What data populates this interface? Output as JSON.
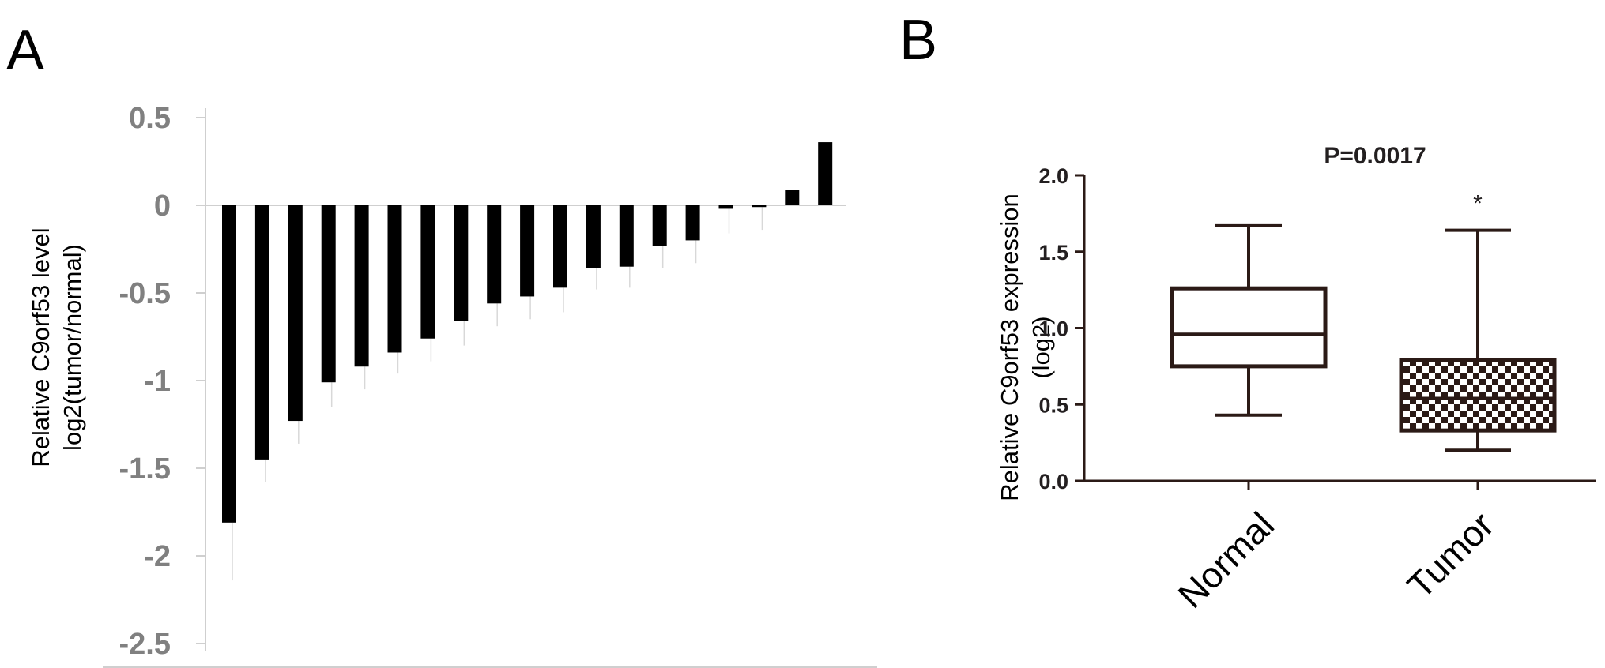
{
  "panel_a": {
    "letter": "A"
  },
  "panel_b": {
    "letter": "B"
  },
  "colors": {
    "bar": "#000000",
    "axis": "#cfcfcf",
    "tick_label_a": "#808080",
    "box_stroke": "#2b1a16",
    "text": "#231f20"
  },
  "chart_data": [
    {
      "type": "bar",
      "panel": "A",
      "title": "",
      "ylabel_lines": [
        "Relative C9orf53 level",
        "log2(tumor/normal)"
      ],
      "xlabel": "",
      "ylim": [
        -2.5,
        0.5
      ],
      "yticks": [
        0.5,
        0,
        -0.5,
        -1,
        -1.5,
        -2,
        -2.5
      ],
      "ytick_labels": [
        "0.5",
        "0",
        "-0.5",
        "-1",
        "-1.5",
        "-2",
        "-2.5"
      ],
      "values": [
        -1.81,
        -1.45,
        -1.23,
        -1.01,
        -0.92,
        -0.84,
        -0.76,
        -0.66,
        -0.56,
        -0.52,
        -0.47,
        -0.36,
        -0.35,
        -0.23,
        -0.2,
        -0.02,
        -0.01,
        0.09,
        0.36
      ],
      "error_bars": [
        0.33,
        0.13,
        0.13,
        0.14,
        0.13,
        0.12,
        0.13,
        0.14,
        0.13,
        0.13,
        0.14,
        0.12,
        0.12,
        0.13,
        0.13,
        0.14,
        0.13,
        0,
        0
      ],
      "grid": false
    },
    {
      "type": "box",
      "panel": "B",
      "title": "",
      "annotation": "P=0.0017",
      "significance_marker": "*",
      "ylabel_lines": [
        "Relative C9orf53 expression",
        "(log2)"
      ],
      "xlabel": "",
      "ylim": [
        0.0,
        2.0
      ],
      "yticks": [
        0.0,
        0.5,
        1.0,
        1.5,
        2.0
      ],
      "ytick_labels": [
        "0.0",
        "0.5",
        "1.0",
        "1.5",
        "2.0"
      ],
      "categories": [
        "Normal",
        "Tumor"
      ],
      "boxes": [
        {
          "name": "Normal",
          "whisker_low": 0.43,
          "q1": 0.75,
          "median": 0.96,
          "q3": 1.26,
          "whisker_high": 1.67,
          "fill": "white"
        },
        {
          "name": "Tumor",
          "whisker_low": 0.2,
          "q1": 0.33,
          "median": 0.54,
          "q3": 0.79,
          "whisker_high": 1.64,
          "fill": "checkered"
        }
      ],
      "grid": false
    }
  ]
}
